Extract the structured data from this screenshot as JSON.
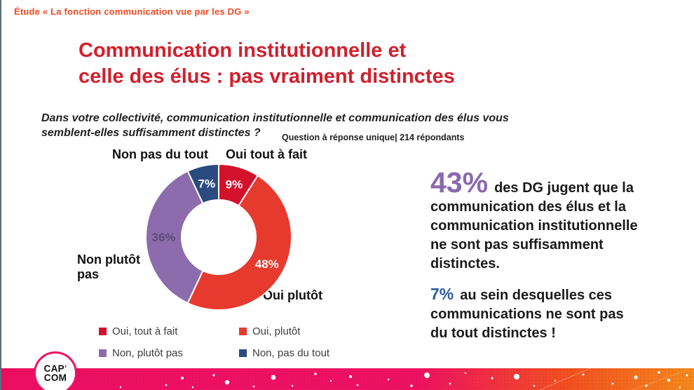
{
  "header": {
    "eyebrow": "Étude « La fonction communication vue par les DG »"
  },
  "title": {
    "line1": "Communication institutionnelle et",
    "line2": "celle des élus : pas vraiment distinctes"
  },
  "question": {
    "line1": "Dans votre collectivité, communication institutionnelle et communication des élus vous",
    "line2": "semblent-elles suffisamment distinctes ?",
    "note": "Question à réponse unique| 214 répondants"
  },
  "chart_data": {
    "type": "pie",
    "subtype": "donut",
    "title": "Dans votre collectivité, communication institutionnelle et communication des élus vous semblent-elles suffisamment distinctes ?",
    "categories": [
      "Oui, tout à fait",
      "Oui, plutôt",
      "Non, plutôt pas",
      "Non, pas du tout"
    ],
    "values": [
      9,
      48,
      36,
      7
    ],
    "unit": "%",
    "start_angle_deg": 0,
    "direction": "clockwise",
    "colors": [
      "#d4112c",
      "#e73a2e",
      "#8c6cac",
      "#2b4b80"
    ],
    "value_label_colors": [
      "#ffffff",
      "#ffffff",
      "#5f4a7d",
      "#ffffff"
    ],
    "legend_position": "bottom"
  },
  "chart_callouts": {
    "top_left": "Non pas du tout",
    "top_right": "Oui tout à fait",
    "left": "Non plutôt pas",
    "bottom_right": "Oui plutôt"
  },
  "legend": {
    "items": [
      {
        "label": "Oui, tout à fait",
        "color": "#d4112c"
      },
      {
        "label": "Oui, plutôt",
        "color": "#e73a2e"
      },
      {
        "label": "Non, plutôt pas",
        "color": "#8c6cac"
      },
      {
        "label": "Non, pas du tout",
        "color": "#2b4b80"
      }
    ]
  },
  "insight": {
    "stat1": {
      "value": "43%",
      "text": "des DG jugent que la communication des élus et la communication institutionnelle ne sont pas suffisamment distinctes."
    },
    "stat2": {
      "value": "7%",
      "text": "au sein desquelles ces communications ne sont pas du tout distinctes !"
    }
  },
  "footer": {
    "logo_top": "CAP",
    "logo_apostrophe": "'",
    "logo_bottom": "COM"
  },
  "colors": {
    "title_red": "#d21f2c",
    "eyebrow_orange": "#f04b21",
    "stat_purple": "#8a68b0",
    "stat_blue": "#2d5da3",
    "footer_pink": "#ed0e63",
    "footer_orange": "#f58a1c"
  }
}
